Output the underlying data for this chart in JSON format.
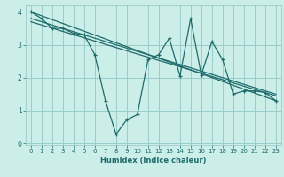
{
  "xlabel": "Humidex (Indice chaleur)",
  "bg_color": "#cceee8",
  "grid_color": "#99cccc",
  "line_color": "#1e6b6b",
  "xlim": [
    -0.5,
    23.5
  ],
  "ylim": [
    -0.05,
    4.2
  ],
  "yticks": [
    0,
    1,
    2,
    3,
    4
  ],
  "xticks": [
    0,
    1,
    2,
    3,
    4,
    5,
    6,
    7,
    8,
    9,
    10,
    11,
    12,
    13,
    14,
    15,
    16,
    17,
    18,
    19,
    20,
    21,
    22,
    23
  ],
  "series1_x": [
    0,
    1,
    2,
    3,
    4,
    5,
    6,
    7,
    8,
    9,
    10,
    11,
    12,
    13,
    14,
    15,
    16,
    17,
    18,
    19,
    20,
    21,
    22,
    23
  ],
  "series1_y": [
    4.0,
    3.8,
    3.5,
    3.5,
    3.35,
    3.3,
    2.7,
    1.3,
    0.28,
    0.72,
    0.88,
    2.55,
    2.7,
    3.2,
    2.05,
    3.8,
    2.08,
    3.1,
    2.55,
    1.5,
    1.6,
    1.6,
    1.55,
    1.3
  ],
  "series2_x": [
    0,
    23
  ],
  "series2_y": [
    4.0,
    1.3
  ],
  "series3_x": [
    0,
    23
  ],
  "series3_y": [
    3.8,
    1.5
  ],
  "series4_x": [
    0,
    23
  ],
  "series4_y": [
    3.7,
    1.45
  ]
}
